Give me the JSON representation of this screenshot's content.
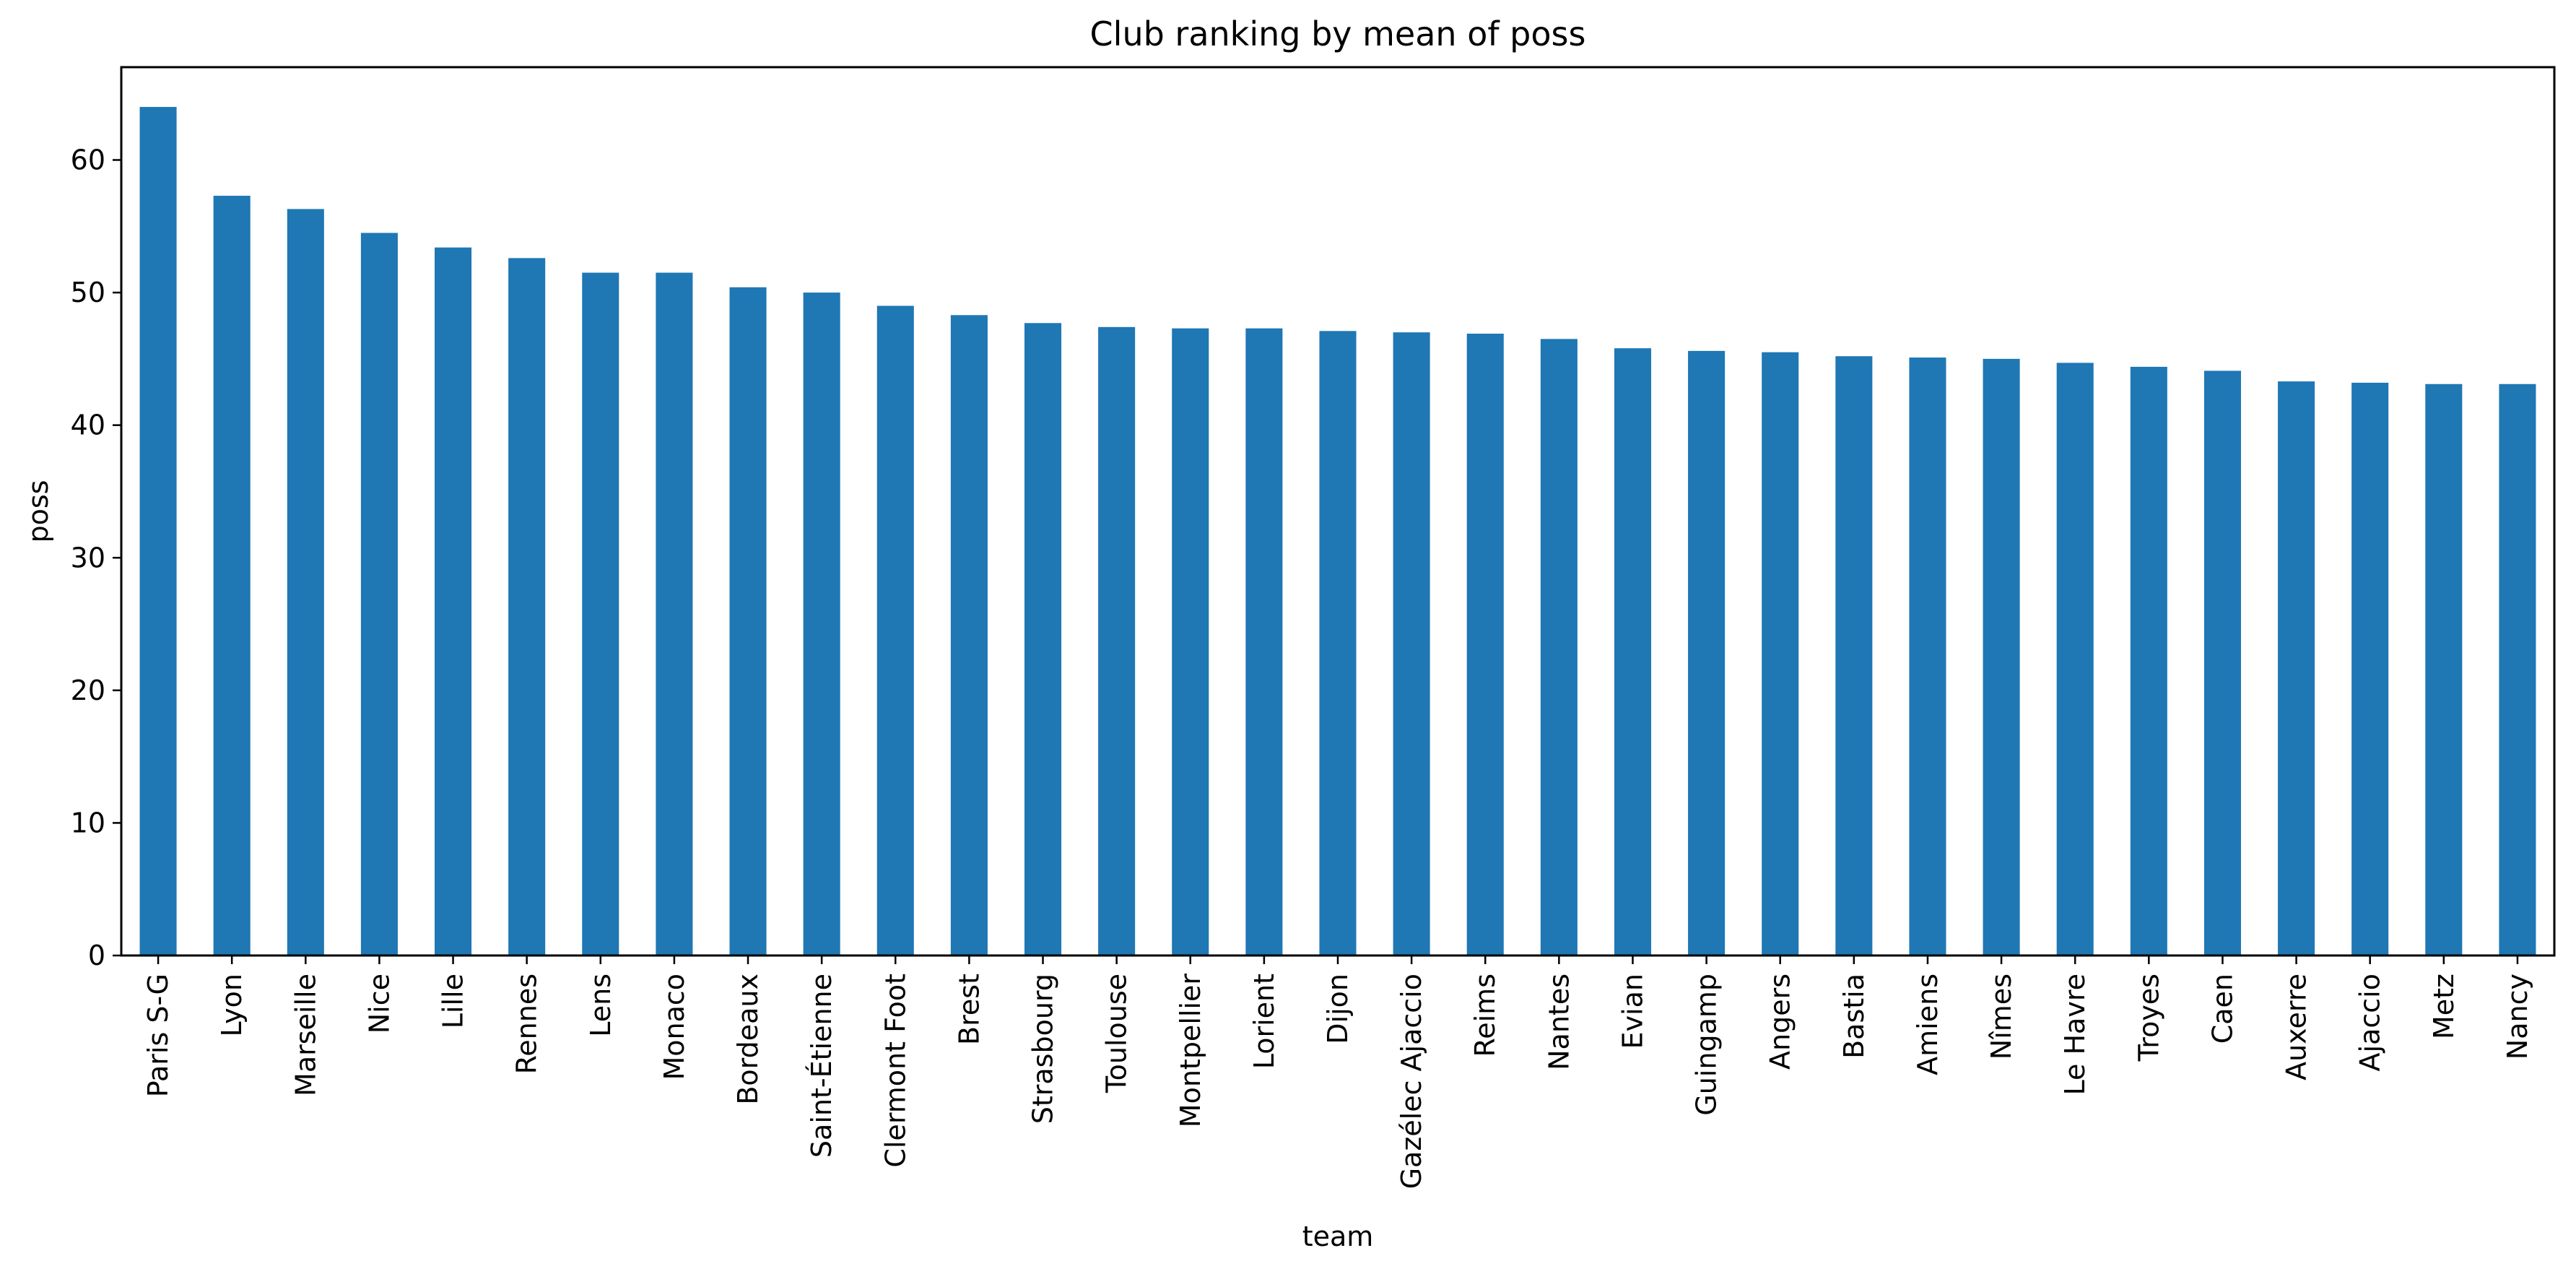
{
  "chart_data": {
    "type": "bar",
    "title": "Club ranking by mean of poss",
    "xlabel": "team",
    "ylabel": "poss",
    "ylim": [
      0,
      67
    ],
    "yticks": [
      0,
      10,
      20,
      30,
      40,
      50,
      60
    ],
    "grid": false,
    "legend": "none",
    "bar_color": "#1f77b4",
    "categories": [
      "Paris S-G",
      "Lyon",
      "Marseille",
      "Nice",
      "Lille",
      "Rennes",
      "Lens",
      "Monaco",
      "Bordeaux",
      "Saint-Étienne",
      "Clermont Foot",
      "Brest",
      "Strasbourg",
      "Toulouse",
      "Montpellier",
      "Lorient",
      "Dijon",
      "Gazélec Ajaccio",
      "Reims",
      "Nantes",
      "Evian",
      "Guingamp",
      "Angers",
      "Bastia",
      "Amiens",
      "Nîmes",
      "Le Havre",
      "Troyes",
      "Caen",
      "Auxerre",
      "Ajaccio",
      "Metz",
      "Nancy"
    ],
    "values": [
      64.0,
      57.3,
      56.3,
      54.5,
      53.4,
      52.6,
      51.5,
      51.5,
      50.4,
      50.0,
      49.0,
      48.3,
      47.7,
      47.4,
      47.3,
      47.3,
      47.1,
      47.0,
      46.9,
      46.5,
      45.8,
      45.6,
      45.5,
      45.2,
      45.1,
      45.0,
      44.7,
      44.4,
      44.1,
      43.3,
      43.2,
      43.1,
      43.1
    ]
  }
}
